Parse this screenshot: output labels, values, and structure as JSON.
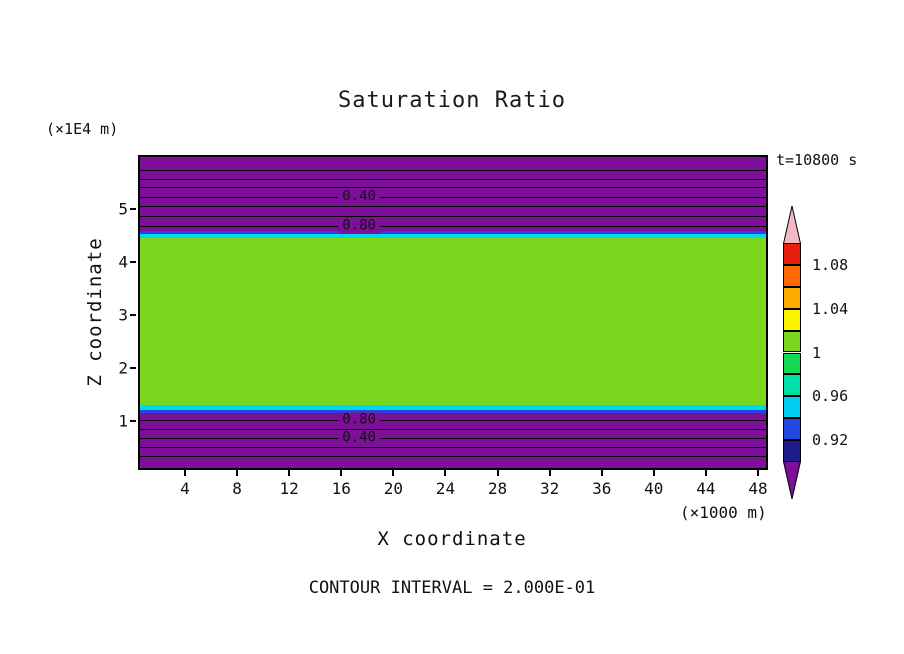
{
  "chart_data": {
    "type": "heatmap",
    "title": "Saturation Ratio",
    "time_annotation": "t=10800 s",
    "xlabel": "X coordinate",
    "ylabel": "Z coordinate",
    "x_unit_label": "(×1000 m)",
    "y_unit_label": "(×1E4 m)",
    "contour_interval": "CONTOUR INTERVAL = 2.000E-01",
    "grid": false,
    "legend_position": "right-colorbar",
    "x_ticks": [
      "4",
      "8",
      "12",
      "16",
      "20",
      "24",
      "28",
      "32",
      "36",
      "40",
      "44",
      "48"
    ],
    "y_ticks": [
      "5",
      "4",
      "3",
      "2",
      "1"
    ],
    "fill_bands": [
      {
        "name": "purple-top",
        "value_range": "< 0.92",
        "color": "#7e0f9a",
        "from": 0.0,
        "to": 0.238
      },
      {
        "name": "blue-top",
        "value_range": "0.92-0.94",
        "color": "#2348e0",
        "from": 0.238,
        "to": 0.246
      },
      {
        "name": "cyan-top",
        "value_range": "0.94-0.98",
        "color": "#00d8f0",
        "from": 0.246,
        "to": 0.262
      },
      {
        "name": "green-middle",
        "value_range": "1.00",
        "color": "#7bd71e",
        "from": 0.262,
        "to": 0.799
      },
      {
        "name": "cyan-bottom",
        "value_range": "0.94-0.98",
        "color": "#00d8f0",
        "from": 0.799,
        "to": 0.815
      },
      {
        "name": "blue-bottom",
        "value_range": "0.92-0.94",
        "color": "#2348e0",
        "from": 0.815,
        "to": 0.823
      },
      {
        "name": "purple-bottom",
        "value_range": "< 0.92",
        "color": "#7e0f9a",
        "from": 0.823,
        "to": 1.0
      }
    ],
    "contour_lines": [
      {
        "y": 0.041
      },
      {
        "y": 0.07
      },
      {
        "y": 0.098
      },
      {
        "y": 0.13,
        "label": "0.40",
        "label_x": 0.35
      },
      {
        "y": 0.159
      },
      {
        "y": 0.19
      },
      {
        "y": 0.222,
        "label": "0.80",
        "label_x": 0.35
      },
      {
        "y": 0.845,
        "label": "0.80",
        "label_x": 0.35
      },
      {
        "y": 0.873
      },
      {
        "y": 0.905,
        "label": "0.40",
        "label_x": 0.35
      },
      {
        "y": 0.933
      },
      {
        "y": 0.962
      }
    ],
    "colorbar": {
      "tick_labels": [
        "1.08",
        "1.04",
        "1",
        "0.96",
        "0.92"
      ],
      "segment_values_top_to_bottom": [
        "1.08-1.10",
        "1.06-1.08",
        "1.04-1.06",
        "1.02-1.04",
        "1.00-1.02",
        "0.98-1.00",
        "0.96-0.98",
        "0.94-0.96",
        "0.92-0.94",
        "0.90-0.92"
      ],
      "segment_colors": [
        "#e81d0c",
        "#ff6a00",
        "#ffaa00",
        "#fdf300",
        "#7bd71e",
        "#17d954",
        "#00dfa8",
        "#00cdf1",
        "#2348e0",
        "#1c1c8f"
      ],
      "over_arrow_color": "#f3b7c5",
      "under_arrow_color": "#7e0f9a"
    }
  }
}
